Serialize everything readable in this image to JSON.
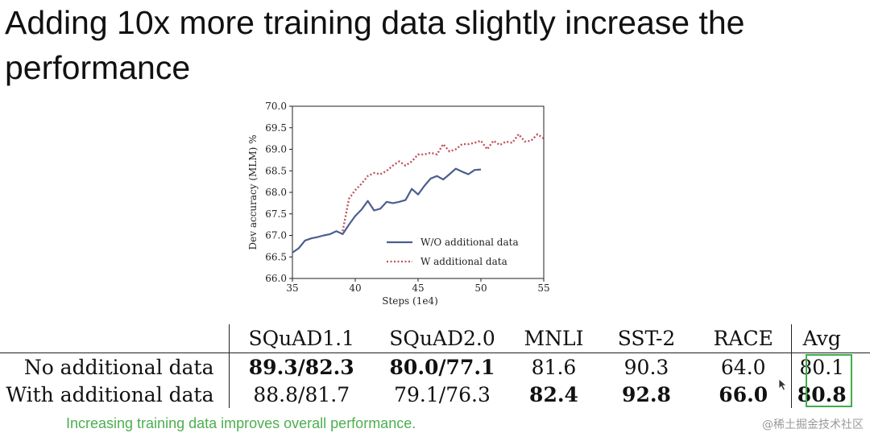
{
  "slide": {
    "title": "Adding 10x more training data slightly increase the performance",
    "caption": "Increasing training data improves overall performance.",
    "watermark": "@稀土掘金技术社区"
  },
  "chart_data": {
    "type": "line",
    "xlabel": "Steps (1e4)",
    "ylabel": "Dev accuracy (MLM) %",
    "xlim": [
      35,
      55
    ],
    "ylim": [
      66.0,
      70.0
    ],
    "xticks": [
      35,
      40,
      45,
      50,
      55
    ],
    "yticks": [
      66.0,
      66.5,
      67.0,
      67.5,
      68.0,
      68.5,
      69.0,
      69.5,
      70.0
    ],
    "grid": false,
    "legend_position": "lower-right",
    "series": [
      {
        "name": "W/O additional data",
        "color": "#4c5e8f",
        "style": "solid",
        "x": [
          35,
          35.5,
          36,
          36.5,
          37,
          37.5,
          38,
          38.5,
          39,
          39.5,
          40,
          40.5,
          41,
          41.5,
          42,
          42.5,
          43,
          43.5,
          44,
          44.5,
          45,
          45.5,
          46,
          46.5,
          47,
          47.5,
          48,
          48.5,
          49,
          49.5,
          50
        ],
        "y": [
          66.6,
          66.7,
          66.88,
          66.93,
          66.96,
          67.0,
          67.03,
          67.1,
          67.03,
          67.25,
          67.45,
          67.6,
          67.8,
          67.58,
          67.62,
          67.78,
          67.75,
          67.78,
          67.82,
          68.08,
          67.95,
          68.15,
          68.32,
          68.38,
          68.3,
          68.42,
          68.55,
          68.48,
          68.42,
          68.52,
          68.53
        ]
      },
      {
        "name": "W additional data",
        "color": "#c0505a",
        "style": "dotted",
        "x": [
          39,
          39.5,
          40,
          40.5,
          41,
          41.5,
          42,
          42.5,
          43,
          43.5,
          44,
          44.5,
          45,
          45.5,
          46,
          46.5,
          47,
          47.5,
          48,
          48.5,
          49,
          49.5,
          50,
          50.5,
          51,
          51.5,
          52,
          52.5,
          53,
          53.5,
          54,
          54.5,
          55
        ],
        "y": [
          67.1,
          67.85,
          68.05,
          68.2,
          68.38,
          68.45,
          68.42,
          68.5,
          68.62,
          68.72,
          68.62,
          68.72,
          68.88,
          68.88,
          68.92,
          68.88,
          69.12,
          68.95,
          69.0,
          69.12,
          69.12,
          69.15,
          69.2,
          69.0,
          69.2,
          69.1,
          69.18,
          69.15,
          69.35,
          69.18,
          69.2,
          69.35,
          69.25
        ]
      }
    ]
  },
  "table": {
    "columns": [
      "SQuAD1.1",
      "SQuAD2.0",
      "MNLI",
      "SST-2",
      "RACE",
      "Avg"
    ],
    "rows": [
      {
        "label": "No additional data",
        "cells": [
          "89.3/82.3",
          "80.0/77.1",
          "81.6",
          "90.3",
          "64.0",
          "80.1"
        ],
        "bold": [
          true,
          true,
          false,
          false,
          false,
          false
        ]
      },
      {
        "label": "With additional data",
        "cells": [
          "88.8/81.7",
          "79.1/76.3",
          "82.4",
          "92.8",
          "66.0",
          "80.8"
        ],
        "bold": [
          false,
          false,
          true,
          true,
          true,
          true
        ]
      }
    ],
    "highlight_color": "#3fae4a"
  },
  "icons": {
    "cursor": "pointer-cursor-icon"
  }
}
